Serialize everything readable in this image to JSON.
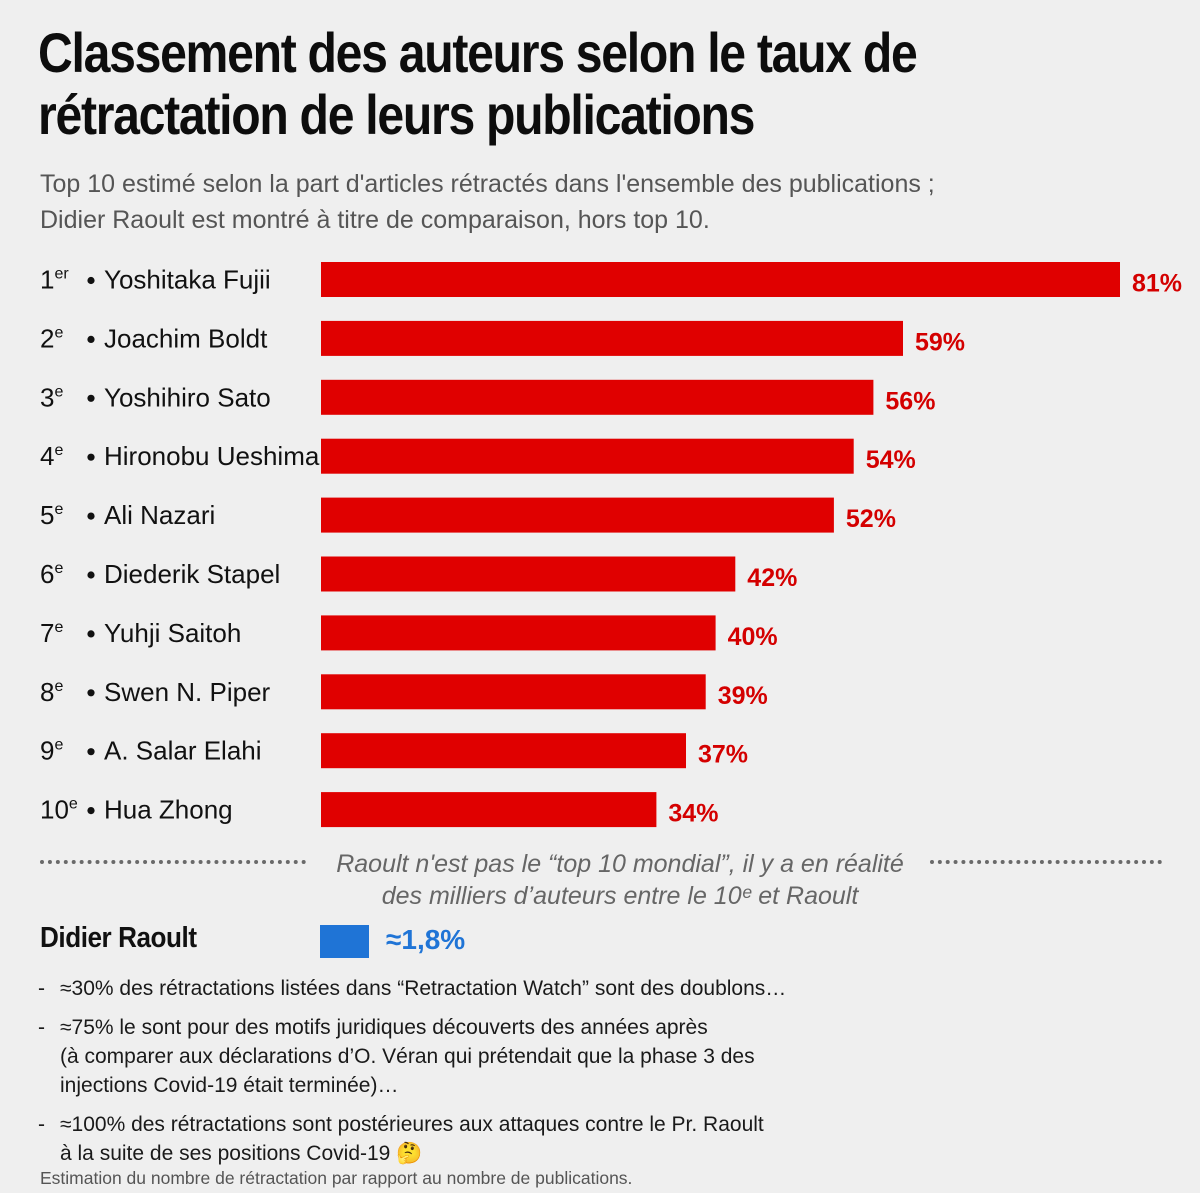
{
  "title_lines": [
    "Classement des auteurs selon le taux de",
    "rétractation de leurs publications"
  ],
  "subtitle_lines": [
    "Top 10 estimé selon la part d'articles rétractés dans l'ensemble des publications ;",
    "Didier Raoult est montré à titre de comparaison, hors top 10."
  ],
  "colors": {
    "bar": "#e00000",
    "label": "#d40000",
    "raoult": "#1f74d6"
  },
  "chart_data": {
    "type": "bar",
    "orientation": "horizontal",
    "ranks": [
      "1er",
      "2e",
      "3e",
      "4e",
      "5e",
      "6e",
      "7e",
      "8e",
      "9e",
      "10e"
    ],
    "categories": [
      "Yoshitaka Fujii",
      "Joachim Boldt",
      "Yoshihiro Sato",
      "Hironobu Ueshima",
      "Ali Nazari",
      "Diederik Stapel",
      "Yuhji Saitoh",
      "Swen N. Piper",
      "A. Salar Elahi",
      "Hua Zhong"
    ],
    "values": [
      81,
      59,
      56,
      54,
      52,
      42,
      40,
      39,
      37,
      34
    ],
    "value_labels": [
      "81%",
      "59%",
      "56%",
      "54%",
      "52%",
      "42%",
      "40%",
      "39%",
      "37%",
      "34%"
    ],
    "unit": "%"
  },
  "separator_lines": [
    "Raoult n'est pas le “top 10 mondial”, il y a en réalité",
    "des milliers d’auteurs entre le 10ᵉ et Raoult"
  ],
  "raoult": {
    "name": "Didier Raoult",
    "value": 1.8,
    "value_label": "≈1,8%"
  },
  "notes": [
    {
      "dash": "-",
      "lines": [
        "≈30% des rétractations listées dans “Retractation Watch” sont des doublons…"
      ]
    },
    {
      "dash": "-",
      "lines": [
        "≈75% le sont pour des motifs juridiques découverts des années après",
        "(à comparer aux déclarations d’O. Véran qui prétendait que la phase 3 des",
        "injections Covid-19 était terminée)…"
      ]
    },
    {
      "dash": "-",
      "lines": [
        "≈100% des rétractations sont postérieures aux attaques contre le Pr. Raoult",
        "à la suite de ses positions Covid-19 🤔"
      ]
    }
  ],
  "footnote": "Estimation du nombre de rétractation par rapport au nombre de publications."
}
